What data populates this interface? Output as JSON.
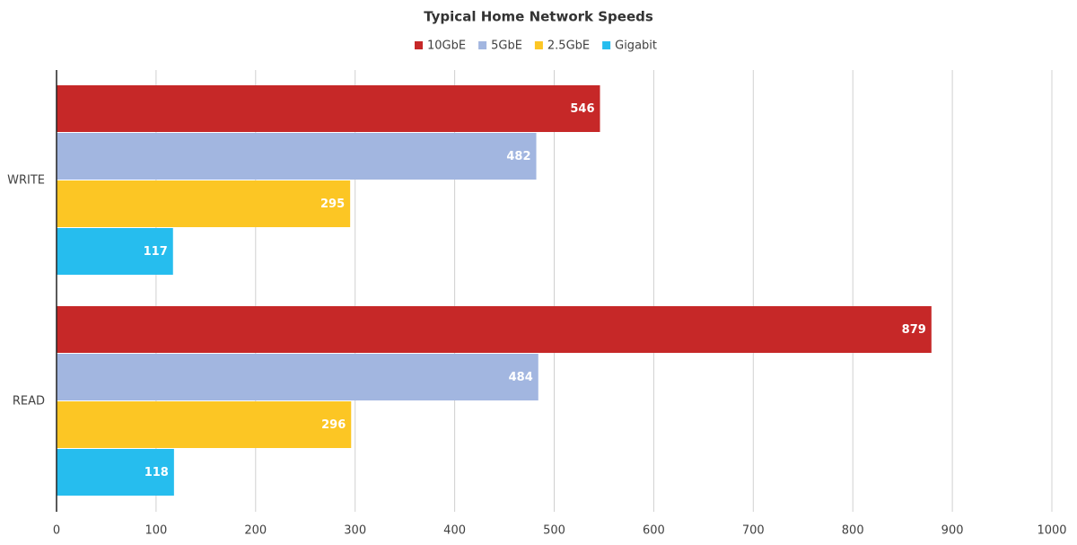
{
  "chart_data": {
    "type": "bar",
    "orientation": "horizontal",
    "title": "Typical Home Network Speeds",
    "categories": [
      "WRITE",
      "READ"
    ],
    "series": [
      {
        "name": "10GbE",
        "color": "#c62828",
        "values": [
          546,
          879
        ]
      },
      {
        "name": "5GbE",
        "color": "#a2b6e0",
        "values": [
          482,
          484
        ]
      },
      {
        "name": "2.5GbE",
        "color": "#fcc624",
        "values": [
          295,
          296
        ]
      },
      {
        "name": "Gigabit",
        "color": "#26bdee",
        "values": [
          117,
          118
        ]
      }
    ],
    "xlim": [
      0,
      1000
    ],
    "xticks": [
      0,
      100,
      200,
      300,
      400,
      500,
      600,
      700,
      800,
      900,
      1000
    ],
    "grid": true,
    "legend": "top"
  }
}
